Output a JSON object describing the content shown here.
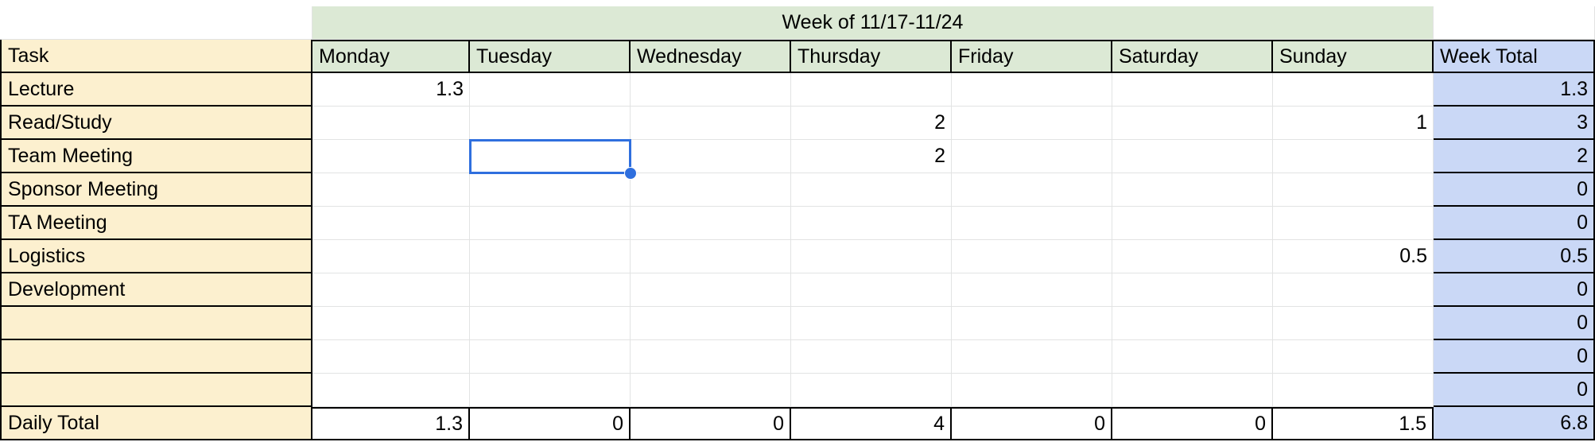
{
  "header": {
    "week_label": "Week of 11/17-11/24"
  },
  "columns": [
    "Task",
    "Monday",
    "Tuesday",
    "Wednesday",
    "Thursday",
    "Friday",
    "Saturday",
    "Sunday",
    "Week Total"
  ],
  "rows": [
    {
      "task": "Lecture",
      "values": [
        "1.3",
        "",
        "",
        "",
        "",
        "",
        ""
      ],
      "total": "1.3"
    },
    {
      "task": "Read/Study",
      "values": [
        "",
        "",
        "",
        "2",
        "",
        "",
        "1"
      ],
      "total": "3"
    },
    {
      "task": "Team Meeting",
      "values": [
        "",
        "",
        "",
        "2",
        "",
        "",
        ""
      ],
      "total": "2"
    },
    {
      "task": "Sponsor Meeting",
      "values": [
        "",
        "",
        "",
        "",
        "",
        "",
        ""
      ],
      "total": "0"
    },
    {
      "task": "TA Meeting",
      "values": [
        "",
        "",
        "",
        "",
        "",
        "",
        ""
      ],
      "total": "0"
    },
    {
      "task": "Logistics",
      "values": [
        "",
        "",
        "",
        "",
        "",
        "",
        "0.5"
      ],
      "total": "0.5"
    },
    {
      "task": "Development",
      "values": [
        "",
        "",
        "",
        "",
        "",
        "",
        ""
      ],
      "total": "0"
    },
    {
      "task": "",
      "values": [
        "",
        "",
        "",
        "",
        "",
        "",
        ""
      ],
      "total": "0"
    },
    {
      "task": "",
      "values": [
        "",
        "",
        "",
        "",
        "",
        "",
        ""
      ],
      "total": "0"
    },
    {
      "task": "",
      "values": [
        "",
        "",
        "",
        "",
        "",
        "",
        ""
      ],
      "total": "0"
    }
  ],
  "daily_total": {
    "label": "Daily Total",
    "values": [
      "1.3",
      "0",
      "0",
      "4",
      "0",
      "0",
      "1.5"
    ],
    "total": "6.8"
  },
  "selected_cell": {
    "row": "Team Meeting",
    "column": "Tuesday"
  },
  "colors": {
    "task_fill": "#fcf0cf",
    "day_header_fill": "#dce9d5",
    "total_fill": "#cad8f6",
    "selection": "#2f6fde"
  }
}
